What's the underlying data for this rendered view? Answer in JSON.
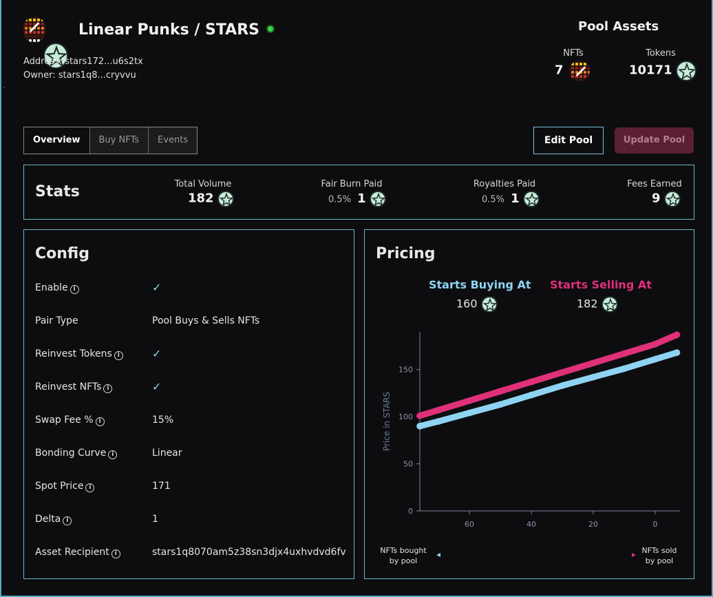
{
  "pool": {
    "name": "Linear Punks / STARS",
    "address": "Address: stars172...u6s2tx",
    "owner": "Owner: stars1q8...cryvvu",
    "status_color": "#3ecf4a"
  },
  "assets": {
    "title": "Pool Assets",
    "nfts_label": "NFTs",
    "nfts_value": "7",
    "tokens_label": "Tokens",
    "tokens_value": "10171"
  },
  "tabs": [
    {
      "label": "Overview",
      "active": true
    },
    {
      "label": "Buy NFTs",
      "active": false
    },
    {
      "label": "Events",
      "active": false
    }
  ],
  "actions": {
    "edit_label": "Edit Pool",
    "update_label": "Update Pool"
  },
  "stats": {
    "title": "Stats",
    "total_volume_label": "Total Volume",
    "total_volume_value": "182",
    "fair_burn_label": "Fair Burn Paid",
    "fair_burn_pct": "0.5%",
    "fair_burn_value": "1",
    "royalties_label": "Royalties Paid",
    "royalties_pct": "0.5%",
    "royalties_value": "1",
    "fees_label": "Fees Earned",
    "fees_value": "9"
  },
  "config": {
    "title": "Config",
    "rows": [
      {
        "label": "Enable",
        "info": true,
        "value": "✓",
        "check": true
      },
      {
        "label": "Pair Type",
        "info": false,
        "value": "Pool Buys & Sells NFTs",
        "check": false
      },
      {
        "label": "Reinvest Tokens",
        "info": true,
        "value": "✓",
        "check": true
      },
      {
        "label": "Reinvest NFTs",
        "info": true,
        "value": "✓",
        "check": true
      },
      {
        "label": "Swap Fee %",
        "info": true,
        "value": "15%",
        "check": false
      },
      {
        "label": "Bonding Curve",
        "info": true,
        "value": "Linear",
        "check": false
      },
      {
        "label": "Spot Price",
        "info": true,
        "value": "171",
        "check": false
      },
      {
        "label": "Delta",
        "info": true,
        "value": "1",
        "check": false
      },
      {
        "label": "Asset Recipient",
        "info": true,
        "value": "stars1q8070am5z38sn3djx4uxhvdvd6fv",
        "check": false
      }
    ]
  },
  "pricing": {
    "title": "Pricing",
    "buy_label": "Starts Buying At",
    "buy_value": "160",
    "buy_color": "#8fd3f2",
    "sell_label": "Starts Selling At",
    "sell_value": "182",
    "sell_color": "#e0307a",
    "left_caption_1": "NFTs bought",
    "left_caption_2": "by pool",
    "right_caption_1": "NFTs sold",
    "right_caption_2": "by pool"
  },
  "chart_data": {
    "type": "line",
    "ylabel": "Price in STARS",
    "xlabel": "",
    "x_reversed": true,
    "xlim": [
      76,
      -8
    ],
    "ylim": [
      0,
      190
    ],
    "xticks": [
      60,
      40,
      20,
      0
    ],
    "yticks": [
      0,
      50,
      100,
      150
    ],
    "series": [
      {
        "name": "Starts Selling At",
        "color": "#e0307a",
        "x": [
          76,
          70,
          60,
          50,
          40,
          30,
          20,
          10,
          0,
          -7
        ],
        "y": [
          101,
          107,
          117,
          127,
          137,
          147,
          157,
          167,
          177,
          187
        ]
      },
      {
        "name": "Starts Buying At",
        "color": "#8fd3f2",
        "x": [
          76,
          70,
          60,
          50,
          40,
          30,
          20,
          10,
          0,
          -7
        ],
        "y": [
          90,
          95,
          104,
          113,
          123,
          133,
          142,
          151,
          161,
          168
        ]
      }
    ]
  }
}
